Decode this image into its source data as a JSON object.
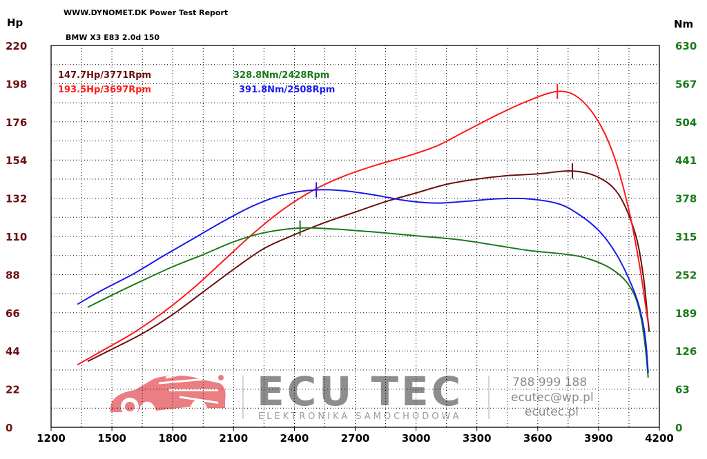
{
  "header": {
    "report_title": "WWW.DYNOMET.DK  Power Test Report",
    "vehicle": "BMW X3 E83 2.0d 150"
  },
  "colors": {
    "power_before": "#6b0f0f",
    "power_after": "#ff1a1a",
    "torque_before": "#1a7a1a",
    "torque_after": "#1a1aee",
    "grid": "#000000"
  },
  "watermark": {
    "brand": "ECU TEC",
    "tagline": "ELEKTRONIKA SAMOCHODOWA",
    "phone": "788 999 188",
    "email": "ecutec@wp.pl",
    "website": "ecutec.pl",
    "logo_icon": "car-circuit-icon",
    "logo_color": "#e8686e"
  },
  "chart_data": {
    "type": "line",
    "xlabel": "",
    "ylabel": "Hp",
    "y2label": "Nm",
    "xlim": [
      1200,
      4200
    ],
    "ylim": [
      0,
      220
    ],
    "y2lim": [
      0,
      630
    ],
    "grid": true,
    "x_ticks": [
      "1200",
      "1500",
      "1800",
      "2100",
      "2400",
      "2700",
      "3000",
      "3300",
      "3600",
      "3900",
      "4200"
    ],
    "y_ticks": [
      "0",
      "22",
      "44",
      "66",
      "88",
      "110",
      "132",
      "154",
      "176",
      "198",
      "220"
    ],
    "y2_ticks": [
      "0",
      "63",
      "126",
      "189",
      "252",
      "315",
      "378",
      "441",
      "504",
      "567",
      "630"
    ],
    "annotations": [
      {
        "text": "147.7Hp/3771Rpm",
        "series": "power_before"
      },
      {
        "text": "193.5Hp/3697Rpm",
        "series": "power_after"
      },
      {
        "text": "328.8Nm/2428Rpm",
        "series": "torque_before"
      },
      {
        "text": "391.8Nm/2508Rpm",
        "series": "torque_after"
      }
    ],
    "series": [
      {
        "key": "power_before",
        "axis": "left",
        "peak": [
          3771,
          147.7
        ],
        "points": [
          [
            1380,
            38
          ],
          [
            1500,
            45
          ],
          [
            1650,
            54
          ],
          [
            1800,
            65
          ],
          [
            1950,
            78
          ],
          [
            2100,
            91
          ],
          [
            2250,
            103
          ],
          [
            2400,
            111
          ],
          [
            2550,
            118
          ],
          [
            2700,
            124
          ],
          [
            2850,
            130
          ],
          [
            3000,
            135
          ],
          [
            3150,
            140
          ],
          [
            3300,
            143
          ],
          [
            3450,
            145
          ],
          [
            3600,
            146
          ],
          [
            3771,
            147.7
          ],
          [
            3900,
            144
          ],
          [
            4000,
            134
          ],
          [
            4080,
            112
          ],
          [
            4120,
            88
          ],
          [
            4140,
            66
          ],
          [
            4150,
            55
          ]
        ]
      },
      {
        "key": "power_after",
        "axis": "left",
        "peak": [
          3697,
          193.5
        ],
        "points": [
          [
            1330,
            36
          ],
          [
            1450,
            44
          ],
          [
            1600,
            54
          ],
          [
            1750,
            66
          ],
          [
            1900,
            80
          ],
          [
            2050,
            96
          ],
          [
            2200,
            112
          ],
          [
            2350,
            126
          ],
          [
            2500,
            137
          ],
          [
            2650,
            145
          ],
          [
            2800,
            151
          ],
          [
            2950,
            156
          ],
          [
            3100,
            162
          ],
          [
            3250,
            171
          ],
          [
            3400,
            180
          ],
          [
            3550,
            188
          ],
          [
            3697,
            193.5
          ],
          [
            3800,
            190
          ],
          [
            3900,
            176
          ],
          [
            3980,
            155
          ],
          [
            4050,
            125
          ],
          [
            4100,
            95
          ],
          [
            4130,
            72
          ],
          [
            4145,
            60
          ]
        ]
      },
      {
        "key": "torque_before",
        "axis": "right",
        "peak": [
          2428,
          328.8
        ],
        "points": [
          [
            1380,
            198
          ],
          [
            1500,
            218
          ],
          [
            1650,
            242
          ],
          [
            1800,
            265
          ],
          [
            1950,
            285
          ],
          [
            2100,
            306
          ],
          [
            2250,
            321
          ],
          [
            2428,
            328.8
          ],
          [
            2600,
            327
          ],
          [
            2800,
            322
          ],
          [
            3000,
            316
          ],
          [
            3200,
            310
          ],
          [
            3400,
            300
          ],
          [
            3550,
            292
          ],
          [
            3750,
            285
          ],
          [
            3850,
            278
          ],
          [
            3950,
            264
          ],
          [
            4030,
            243
          ],
          [
            4080,
            216
          ],
          [
            4110,
            180
          ],
          [
            4130,
            135
          ],
          [
            4145,
            82
          ]
        ]
      },
      {
        "key": "torque_after",
        "axis": "right",
        "peak": [
          2508,
          391.8
        ],
        "points": [
          [
            1330,
            203
          ],
          [
            1450,
            226
          ],
          [
            1600,
            252
          ],
          [
            1750,
            282
          ],
          [
            1900,
            311
          ],
          [
            2050,
            340
          ],
          [
            2200,
            366
          ],
          [
            2350,
            384
          ],
          [
            2508,
            391.8
          ],
          [
            2650,
            390
          ],
          [
            2800,
            383
          ],
          [
            2950,
            374
          ],
          [
            3100,
            370
          ],
          [
            3250,
            373
          ],
          [
            3400,
            377
          ],
          [
            3550,
            377
          ],
          [
            3700,
            369
          ],
          [
            3800,
            352
          ],
          [
            3900,
            325
          ],
          [
            3980,
            290
          ],
          [
            4050,
            245
          ],
          [
            4100,
            200
          ],
          [
            4130,
            150
          ],
          [
            4145,
            90
          ]
        ]
      }
    ]
  }
}
